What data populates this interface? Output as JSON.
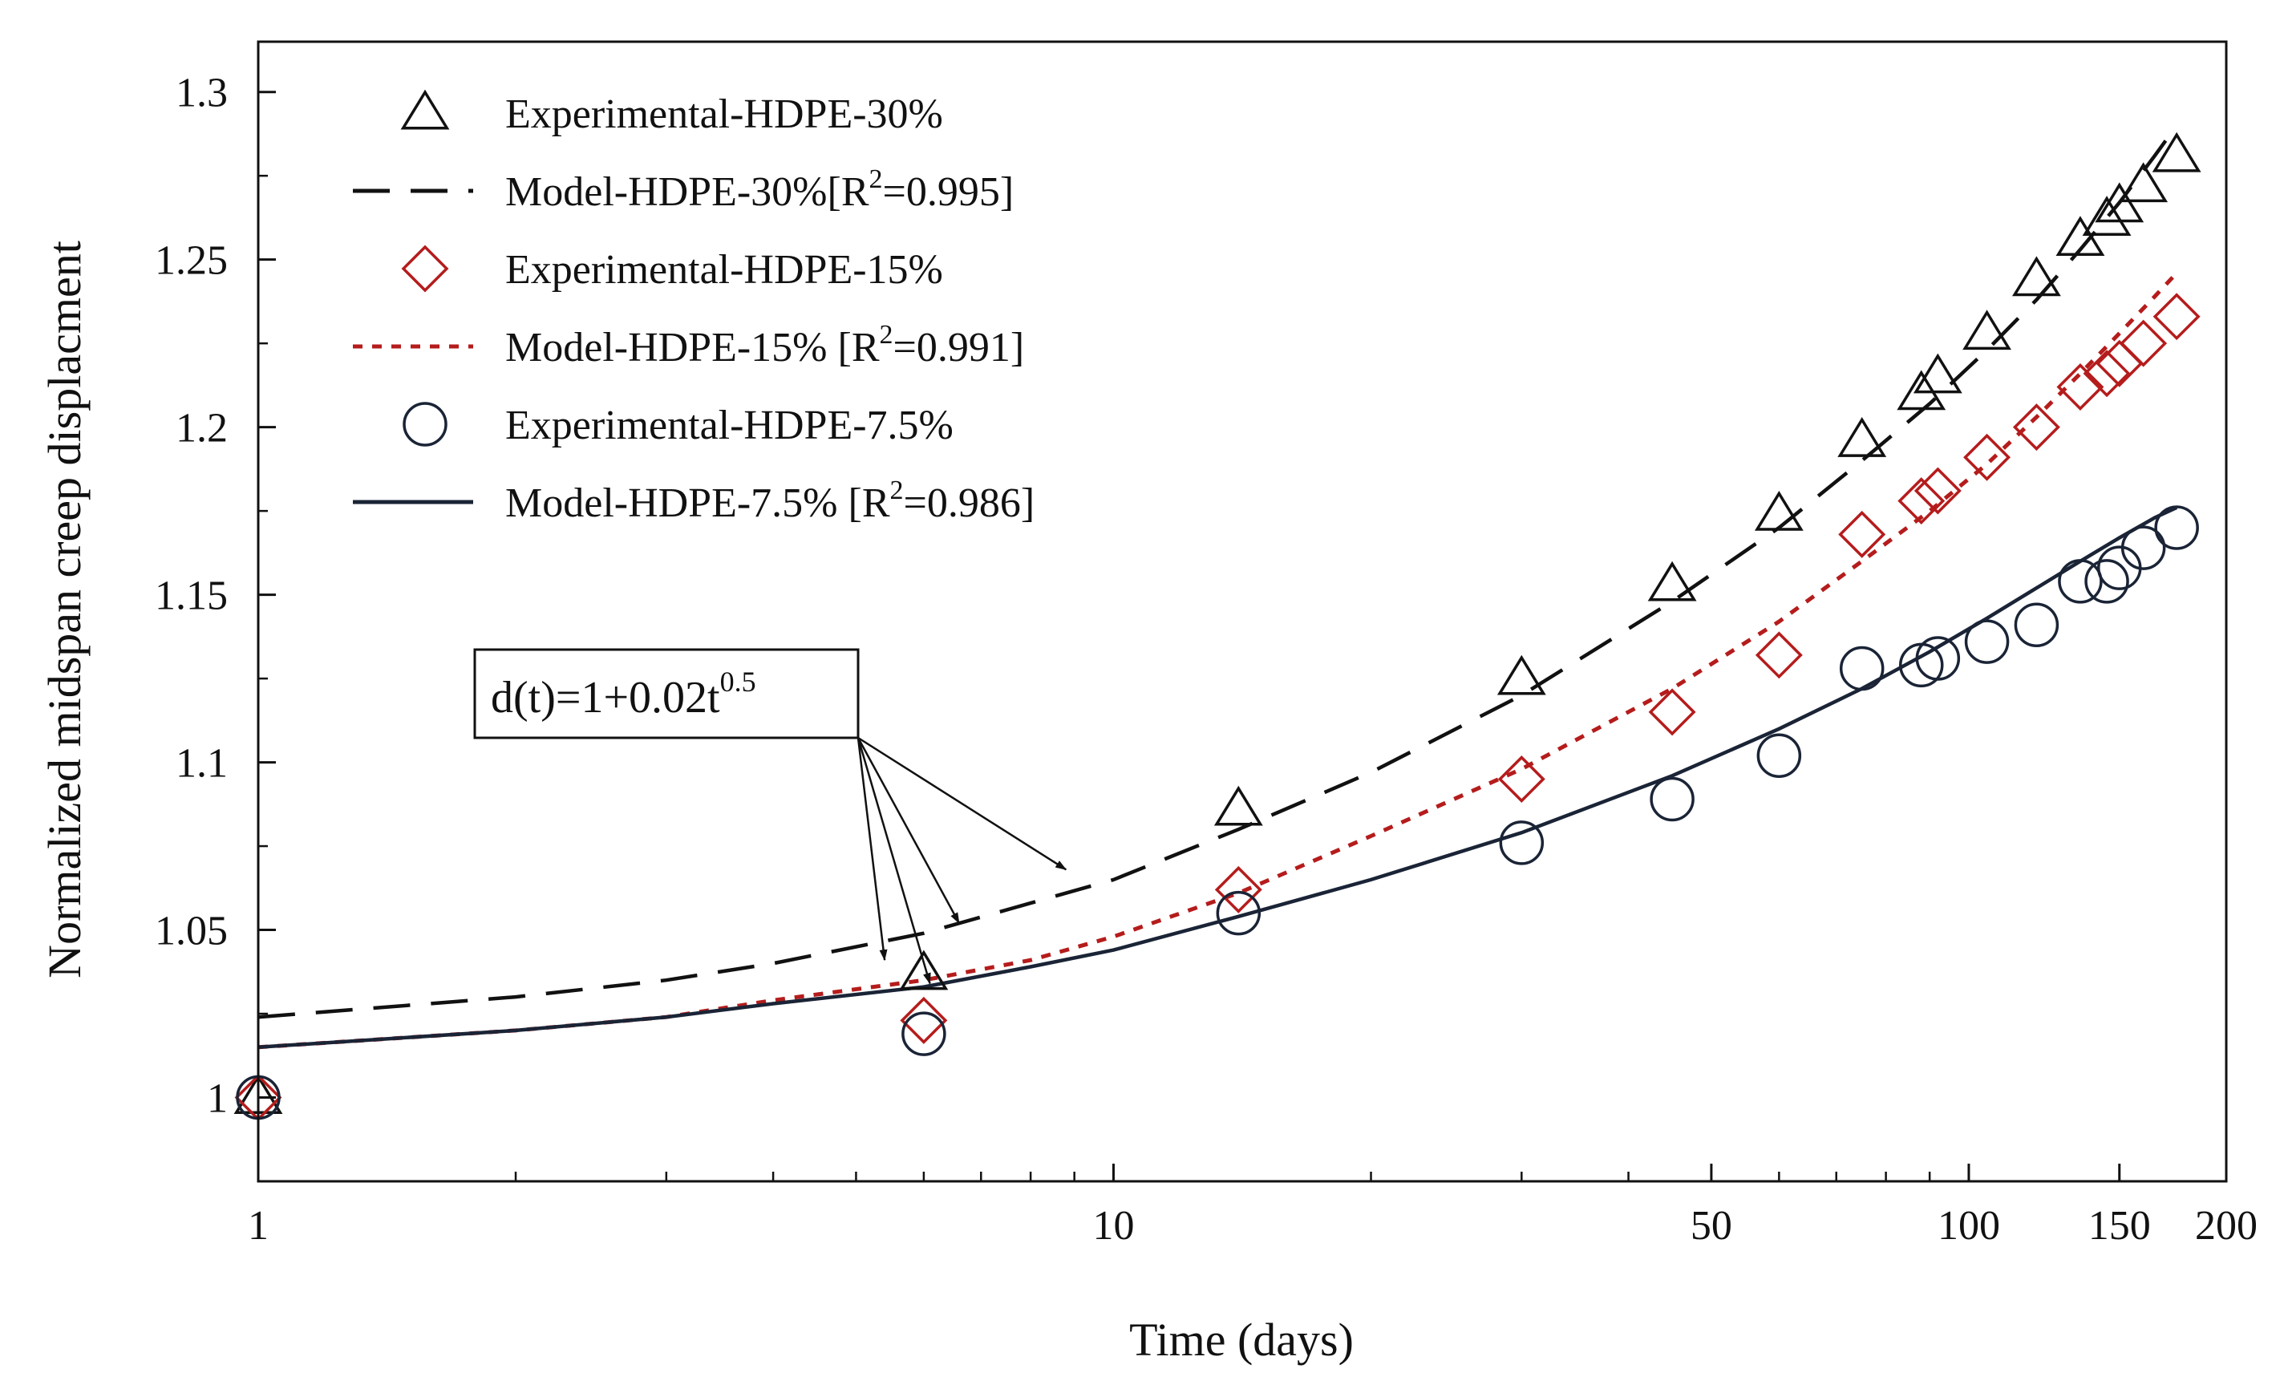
{
  "chart_data": {
    "type": "scatter",
    "xlabel": "Time (days)",
    "ylabel": "Normalized midspan creep displacment",
    "x_scale": "log",
    "xlim": [
      1,
      200
    ],
    "ylim": [
      0.975,
      1.315
    ],
    "x_ticks": [
      {
        "value": 1,
        "label": "1"
      },
      {
        "value": 10,
        "label": "10"
      },
      {
        "value": 50,
        "label": "50"
      },
      {
        "value": 100,
        "label": "100"
      },
      {
        "value": 150,
        "label": "150"
      },
      {
        "value": 200,
        "label": "200"
      }
    ],
    "x_minor_ticks": [
      2,
      3,
      4,
      5,
      6,
      7,
      8,
      9,
      20,
      30,
      40,
      60,
      70,
      80,
      90
    ],
    "y_ticks": [
      {
        "value": 1.0,
        "label": "1"
      },
      {
        "value": 1.05,
        "label": "1.05"
      },
      {
        "value": 1.1,
        "label": "1.1"
      },
      {
        "value": 1.15,
        "label": "1.15"
      },
      {
        "value": 1.2,
        "label": "1.2"
      },
      {
        "value": 1.25,
        "label": "1.25"
      },
      {
        "value": 1.3,
        "label": "1.3"
      }
    ],
    "grid": false,
    "legend_position": "top-left",
    "series": [
      {
        "key": "exp30",
        "name": "Experimental-HDPE-30%",
        "kind": "points",
        "marker": "triangle",
        "color": "#111111",
        "x": [
          1,
          6,
          14,
          30,
          45,
          60,
          75,
          88,
          92,
          105,
          120,
          135,
          145,
          150,
          160,
          175
        ],
        "y": [
          1.0,
          1.037,
          1.086,
          1.125,
          1.153,
          1.174,
          1.196,
          1.21,
          1.215,
          1.228,
          1.244,
          1.256,
          1.262,
          1.266,
          1.272,
          1.281
        ]
      },
      {
        "key": "model30",
        "name": "Model-HDPE-30%[R",
        "name_sup": "2",
        "name_tail": "=0.995]",
        "kind": "line",
        "dash": "dashed",
        "color": "#111111",
        "x": [
          1,
          2,
          3,
          4,
          6,
          8,
          10,
          14,
          20,
          30,
          45,
          60,
          75,
          90,
          105,
          120,
          135,
          150,
          165,
          175
        ],
        "y": [
          1.024,
          1.03,
          1.035,
          1.04,
          1.049,
          1.058,
          1.065,
          1.08,
          1.097,
          1.12,
          1.148,
          1.17,
          1.19,
          1.207,
          1.223,
          1.238,
          1.253,
          1.267,
          1.281,
          1.29
        ]
      },
      {
        "key": "exp15",
        "name": "Experimental-HDPE-15%",
        "kind": "points",
        "marker": "diamond",
        "color": "#b51c1c",
        "x": [
          1,
          6,
          14,
          30,
          45,
          60,
          75,
          88,
          92,
          105,
          120,
          135,
          145,
          150,
          160,
          175
        ],
        "y": [
          1.0,
          1.023,
          1.062,
          1.095,
          1.115,
          1.132,
          1.168,
          1.178,
          1.181,
          1.191,
          1.2,
          1.212,
          1.216,
          1.219,
          1.225,
          1.233
        ]
      },
      {
        "key": "model15",
        "name": "Model-HDPE-15% [R",
        "name_sup": "2",
        "name_tail": "=0.991]",
        "kind": "line",
        "dash": "dotted",
        "color": "#b51c1c",
        "x": [
          1,
          2,
          3,
          4,
          6,
          8,
          10,
          14,
          20,
          30,
          45,
          60,
          75,
          90,
          105,
          120,
          135,
          150,
          165,
          175
        ],
        "y": [
          1.015,
          1.02,
          1.024,
          1.029,
          1.035,
          1.041,
          1.048,
          1.061,
          1.078,
          1.098,
          1.122,
          1.142,
          1.16,
          1.175,
          1.189,
          1.203,
          1.216,
          1.228,
          1.239,
          1.246
        ]
      },
      {
        "key": "exp75",
        "name": "Experimental-HDPE-7.5%",
        "kind": "points",
        "marker": "circle",
        "color": "#1a2436",
        "x": [
          1,
          6,
          14,
          30,
          45,
          60,
          75,
          88,
          92,
          105,
          120,
          135,
          145,
          150,
          160,
          175
        ],
        "y": [
          1.0,
          1.019,
          1.055,
          1.076,
          1.089,
          1.102,
          1.128,
          1.129,
          1.131,
          1.136,
          1.141,
          1.154,
          1.154,
          1.158,
          1.164,
          1.17
        ]
      },
      {
        "key": "model75",
        "name": "Model-HDPE-7.5% [R",
        "name_sup": "2",
        "name_tail": "=0.986]",
        "kind": "line",
        "dash": "solid",
        "color": "#1a2436",
        "x": [
          1,
          2,
          3,
          4,
          6,
          8,
          10,
          14,
          20,
          30,
          45,
          60,
          75,
          90,
          105,
          120,
          135,
          150,
          165,
          175
        ],
        "y": [
          1.015,
          1.02,
          1.024,
          1.028,
          1.033,
          1.039,
          1.044,
          1.054,
          1.065,
          1.079,
          1.096,
          1.11,
          1.122,
          1.133,
          1.143,
          1.152,
          1.16,
          1.167,
          1.173,
          1.176
        ]
      }
    ],
    "annotation": {
      "text": "d(t)=1+0.02t",
      "sup": "0.5",
      "arrow_targets": [
        {
          "x": 8.8,
          "y": 1.068
        },
        {
          "x": 6.6,
          "y": 1.052
        },
        {
          "x": 5.4,
          "y": 1.041
        },
        {
          "x": 6.1,
          "y": 1.034
        }
      ]
    }
  }
}
